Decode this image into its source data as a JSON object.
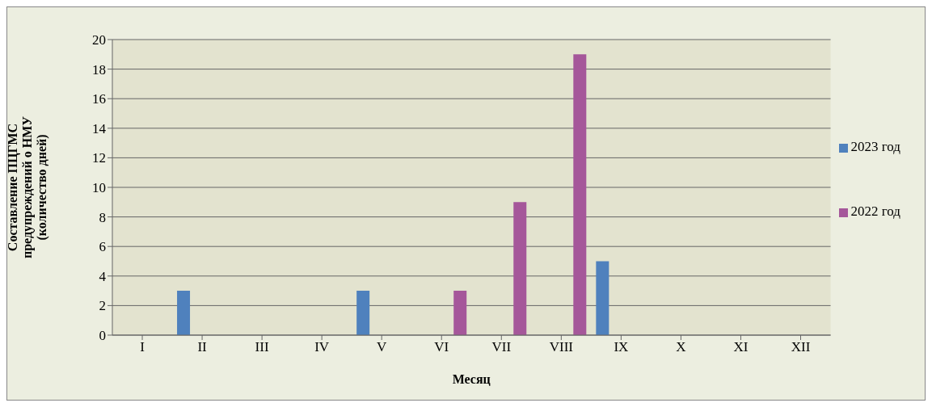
{
  "chart_data": {
    "type": "bar",
    "xlabel": "Месяц",
    "ylabel": "Составление ПЦГМС предупреждений о НМУ (количество дней)",
    "categories": [
      "I",
      "II",
      "III",
      "IV",
      "V",
      "VI",
      "VII",
      "VIII",
      "IX",
      "X",
      "XI",
      "XII"
    ],
    "series": [
      {
        "name": "2023 год",
        "color": "#4f81bd",
        "values": [
          0,
          3,
          0,
          0,
          3,
          0,
          0,
          0,
          5,
          0,
          0,
          0
        ]
      },
      {
        "name": "2022 год",
        "color": "#a5579a",
        "values": [
          0,
          0,
          0,
          0,
          0,
          3,
          9,
          19,
          0,
          0,
          0,
          0
        ]
      }
    ],
    "ylim": [
      0,
      20
    ],
    "yticks": [
      0,
      2,
      4,
      6,
      8,
      10,
      12,
      14,
      16,
      18,
      20
    ],
    "grid": "y",
    "legend": "right"
  }
}
